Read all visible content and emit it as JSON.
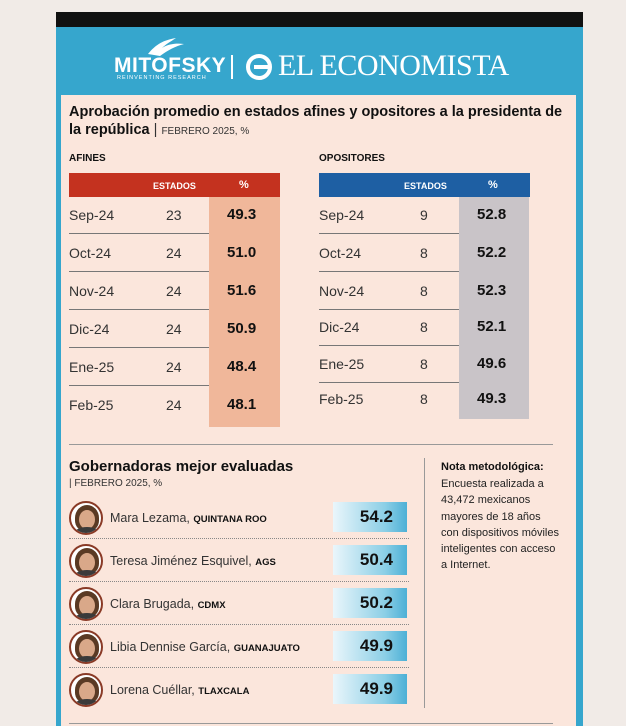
{
  "brand": {
    "mitofsky": "MITOFSKY",
    "mitofsky_sub": "REINVENTING RESEARCH",
    "economista": "EL ECONOMISTA",
    "divider": "|"
  },
  "title": {
    "main": "Aprobación promedio en estados afines y opositores a la presidenta de la república",
    "sep": "|",
    "date": "FEBRERO 2025, %"
  },
  "afines": {
    "label": "AFINES",
    "header_estados": "ESTADOS",
    "header_pct": "%",
    "header_color": "#c4321f",
    "pct_bg": "#f0b79a",
    "rows": [
      {
        "month": "Sep-24",
        "estados": "23",
        "pct": "49.3"
      },
      {
        "month": "Oct-24",
        "estados": "24",
        "pct": "51.0"
      },
      {
        "month": "Nov-24",
        "estados": "24",
        "pct": "51.6"
      },
      {
        "month": "Dic-24",
        "estados": "24",
        "pct": "50.9"
      },
      {
        "month": "Ene-25",
        "estados": "24",
        "pct": "48.4"
      },
      {
        "month": "Feb-25",
        "estados": "24",
        "pct": "48.1"
      }
    ]
  },
  "opositores": {
    "label": "OPOSITORES",
    "header_estados": "ESTADOS",
    "header_pct": "%",
    "header_color": "#1e5fa3",
    "pct_bg": "#c9c4c8",
    "rows": [
      {
        "month": "Sep-24",
        "estados": "9",
        "pct": "52.8"
      },
      {
        "month": "Oct-24",
        "estados": "8",
        "pct": "52.2"
      },
      {
        "month": "Nov-24",
        "estados": "8",
        "pct": "52.3"
      },
      {
        "month": "Dic-24",
        "estados": "8",
        "pct": "52.1"
      },
      {
        "month": "Ene-25",
        "estados": "8",
        "pct": "49.6"
      },
      {
        "month": "Feb-25",
        "estados": "8",
        "pct": "49.3"
      }
    ]
  },
  "gobernadoras": {
    "title": "Gobernadoras mejor evaluadas",
    "sep": "|",
    "date": "FEBRERO  2025, %",
    "items": [
      {
        "name": "Mara Lezama,",
        "state": "QUINTANA ROO",
        "value": "54.2"
      },
      {
        "name": "Teresa Jiménez Esquivel,",
        "state": "AGS",
        "value": "50.4"
      },
      {
        "name": "Clara Brugada,",
        "state": "CDMX",
        "value": "50.2"
      },
      {
        "name": "Libia Dennise García,",
        "state": "GUANAJUATO",
        "value": "49.9"
      },
      {
        "name": "Lorena Cuéllar,",
        "state": "TLAXCALA",
        "value": "49.9"
      }
    ]
  },
  "nota": {
    "title": "Nota metodológica:",
    "body": "Encuesta realizada a 43,472 mexicanos mayores de 18 años con dispositivos móviles inteligentes con acceso a Internet."
  }
}
